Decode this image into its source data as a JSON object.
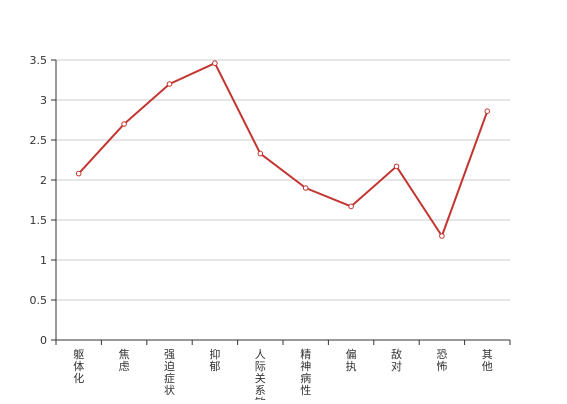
{
  "chart_data": {
    "type": "line",
    "categories": [
      "躯体化",
      "焦虑",
      "强迫症状",
      "抑郁",
      "人际关系敏感",
      "精神病性",
      "偏执",
      "敌对",
      "恐怖",
      "其他"
    ],
    "series": [
      {
        "values": [
          2.08,
          2.7,
          3.2,
          3.46,
          2.33,
          1.9,
          1.67,
          2.17,
          1.3,
          2.86
        ]
      }
    ],
    "y_ticks": [
      "0",
      "0.5",
      "1",
      "1.5",
      "2",
      "2.5",
      "3",
      "3.5"
    ],
    "ylim": [
      0,
      3.5
    ],
    "grid": true,
    "colors": {
      "line": "#c23531",
      "grid": "#cccccc",
      "axis": "#333333",
      "text": "#333333"
    }
  }
}
